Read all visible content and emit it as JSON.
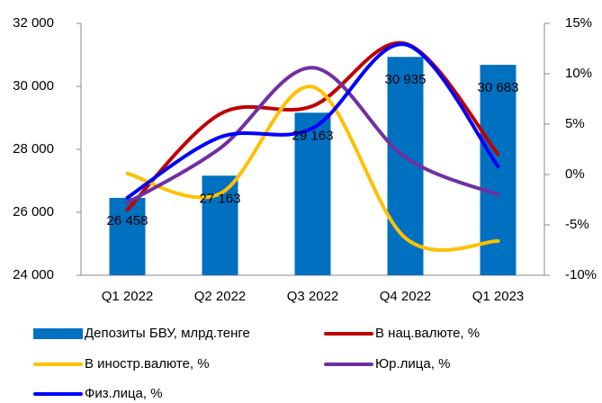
{
  "chart_data": {
    "type": "bar",
    "categories": [
      "Q1 2022",
      "Q2 2022",
      "Q3 2022",
      "Q4 2022",
      "Q1 2023"
    ],
    "ylim": [
      24000,
      32000
    ],
    "yticks": [
      {
        "value": 24000,
        "label": "24 000"
      },
      {
        "value": 26000,
        "label": "26 000"
      },
      {
        "value": 28000,
        "label": "28 000"
      },
      {
        "value": 30000,
        "label": "30 000"
      },
      {
        "value": 32000,
        "label": "32 000"
      }
    ],
    "y2lim": [
      -10,
      15
    ],
    "y2ticks": [
      {
        "value": -10,
        "label": "-10%"
      },
      {
        "value": -5,
        "label": "-5%"
      },
      {
        "value": 0,
        "label": "0%"
      },
      {
        "value": 5,
        "label": "5%"
      },
      {
        "value": 10,
        "label": "10%"
      },
      {
        "value": 15,
        "label": "15%"
      }
    ],
    "series": [
      {
        "name": "Депозиты БВУ, млрд.тенге",
        "type": "bar",
        "color": "#0070c0",
        "values": [
          26458,
          27163,
          29163,
          30935,
          30683
        ],
        "value_labels": [
          "26 458",
          "27 163",
          "29 163",
          "30 935",
          "30 683"
        ]
      },
      {
        "name": "В нац.валюте, %",
        "type": "line",
        "axis": "y2",
        "color": "#c00000",
        "values": [
          -3.5,
          6.0,
          6.8,
          13.0,
          2.0
        ]
      },
      {
        "name": "В иностр.валюте, %",
        "type": "line",
        "axis": "y2",
        "color": "#ffc000",
        "values": [
          0.1,
          -1.9,
          8.7,
          -6.3,
          -6.6
        ]
      },
      {
        "name": "Юр.лица, %",
        "type": "line",
        "axis": "y2",
        "color": "#7030a0",
        "values": [
          -2.8,
          2.6,
          10.6,
          1.7,
          -2.0
        ]
      },
      {
        "name": "Физ.лица, %",
        "type": "line",
        "axis": "y2",
        "color": "#0000ff",
        "values": [
          -2.3,
          3.7,
          4.6,
          12.9,
          0.8
        ]
      }
    ]
  }
}
